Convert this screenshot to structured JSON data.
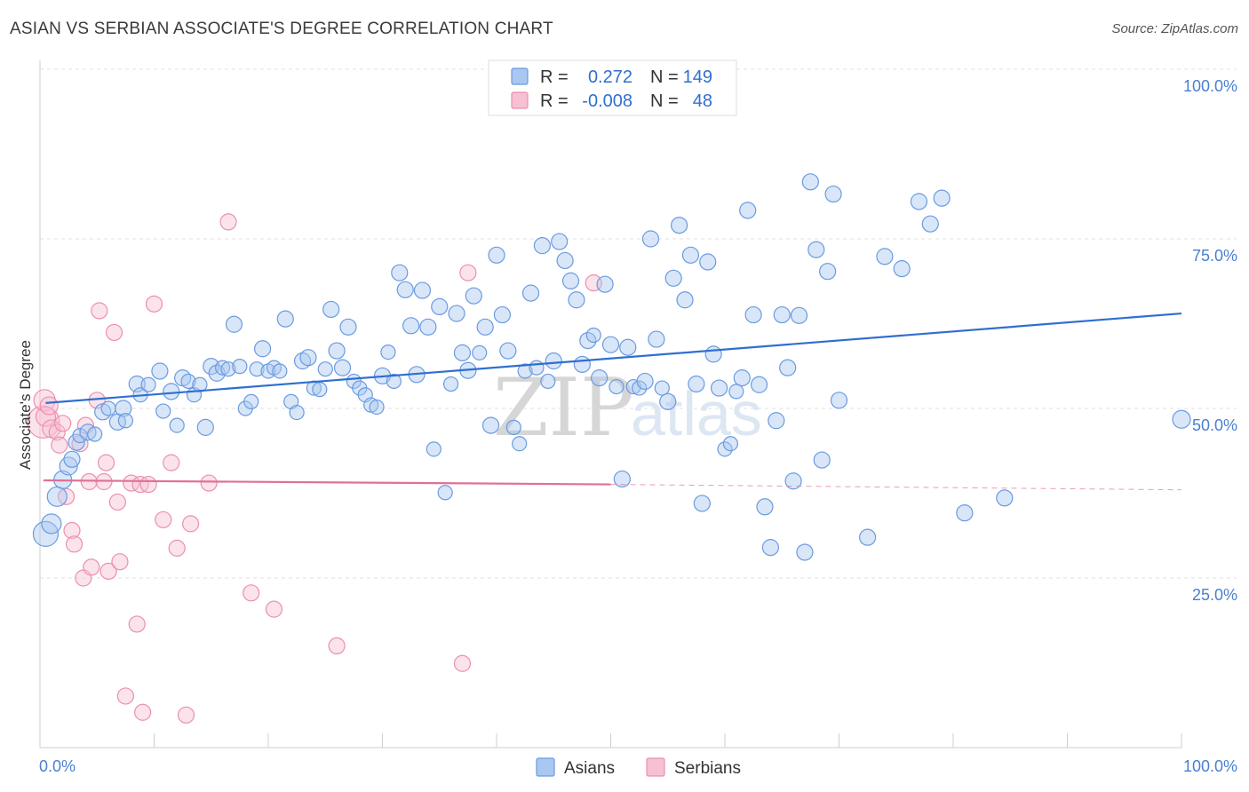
{
  "title": "ASIAN VS SERBIAN ASSOCIATE'S DEGREE CORRELATION CHART",
  "source": "Source: ZipAtlas.com",
  "watermark": {
    "zip": "ZIP",
    "atlas": "atlas"
  },
  "colors": {
    "asian": "#6a9be0",
    "asian_fill": "#a9c7f0",
    "serbian": "#ec8fae",
    "serbian_fill": "#f6c1d2",
    "asian_line": "#2f6fd0",
    "serbian_line": "#e07097",
    "tick": "#4a7fd0"
  },
  "legend": {
    "rows": [
      {
        "r_label": "R =",
        "r_value": "0.272",
        "n_label": "N =",
        "n_value": "149"
      },
      {
        "r_label": "R =",
        "r_value": "-0.008",
        "n_label": "N =",
        "n_value": "48"
      }
    ]
  },
  "bottom_legend": {
    "asian": "Asians",
    "serbian": "Serbians"
  },
  "chart_data": {
    "type": "scatter",
    "xlabel": "",
    "ylabel": "Associate's Degree",
    "xlim": [
      0,
      100
    ],
    "ylim": [
      0,
      100
    ],
    "x_ticks": [
      "0.0%",
      "100.0%"
    ],
    "y_ticks": [
      {
        "value": 25,
        "label": "25.0%"
      },
      {
        "value": 50,
        "label": "50.0%"
      },
      {
        "value": 75,
        "label": "75.0%"
      },
      {
        "value": 100,
        "label": "100.0%"
      }
    ],
    "grid": true,
    "legend_position": "top-center",
    "series": [
      {
        "name": "Asians",
        "trend": {
          "x0": 0.5,
          "y0": 50.8,
          "x1": 100,
          "y1": 64.0
        },
        "points": [
          [
            0.5,
            31.5,
            14
          ],
          [
            1,
            33,
            11
          ],
          [
            1.5,
            37,
            11
          ],
          [
            2,
            39.5,
            10
          ],
          [
            2.5,
            41.5,
            10
          ],
          [
            2.8,
            42.5,
            9
          ],
          [
            3.2,
            45,
            9
          ],
          [
            3.5,
            46,
            8
          ],
          [
            4.2,
            46.5,
            9
          ],
          [
            4.8,
            46.2,
            8
          ],
          [
            5.5,
            49.5,
            9
          ],
          [
            6,
            50,
            8
          ],
          [
            6.8,
            48,
            9
          ],
          [
            7.3,
            50,
            9
          ],
          [
            7.5,
            48.2,
            8
          ],
          [
            8.5,
            53.6,
            9
          ],
          [
            8.8,
            52,
            8
          ],
          [
            9.5,
            53.5,
            8
          ],
          [
            10.5,
            55.5,
            9
          ],
          [
            10.8,
            49.6,
            8
          ],
          [
            11.5,
            52.5,
            9
          ],
          [
            12,
            47.5,
            8
          ],
          [
            12.5,
            54.5,
            9
          ],
          [
            13,
            54,
            8
          ],
          [
            13.5,
            52,
            8
          ],
          [
            14,
            53.5,
            8
          ],
          [
            14.5,
            47.2,
            9
          ],
          [
            15,
            56.2,
            9
          ],
          [
            15.5,
            55.2,
            9
          ],
          [
            16,
            56,
            8
          ],
          [
            16.5,
            55.8,
            8
          ],
          [
            17,
            62.4,
            9
          ],
          [
            17.5,
            56.2,
            8
          ],
          [
            18,
            50,
            8
          ],
          [
            18.5,
            51,
            8
          ],
          [
            19,
            55.8,
            8
          ],
          [
            19.5,
            58.8,
            9
          ],
          [
            20,
            55.5,
            8
          ],
          [
            20.5,
            56,
            8
          ],
          [
            21,
            55.5,
            8
          ],
          [
            21.5,
            63.2,
            9
          ],
          [
            22,
            51,
            8
          ],
          [
            22.5,
            49.4,
            8
          ],
          [
            23,
            57,
            9
          ],
          [
            23.5,
            57.5,
            9
          ],
          [
            24,
            53,
            8
          ],
          [
            24.5,
            52.8,
            8
          ],
          [
            25,
            55.8,
            8
          ],
          [
            25.5,
            64.6,
            9
          ],
          [
            26,
            58.5,
            9
          ],
          [
            26.5,
            56,
            9
          ],
          [
            27,
            62,
            9
          ],
          [
            27.5,
            54,
            8
          ],
          [
            28,
            53,
            8
          ],
          [
            28.5,
            52,
            8
          ],
          [
            29,
            50.5,
            8
          ],
          [
            29.5,
            50.2,
            8
          ],
          [
            30,
            54.8,
            9
          ],
          [
            30.5,
            58.3,
            8
          ],
          [
            31,
            54,
            8
          ],
          [
            31.5,
            70,
            9
          ],
          [
            32,
            67.5,
            9
          ],
          [
            32.5,
            62.2,
            9
          ],
          [
            33,
            55,
            9
          ],
          [
            33.5,
            67.4,
            9
          ],
          [
            34,
            62,
            9
          ],
          [
            34.5,
            44,
            8
          ],
          [
            35,
            65,
            9
          ],
          [
            35.5,
            37.6,
            8
          ],
          [
            36,
            53.6,
            8
          ],
          [
            36.5,
            64,
            9
          ],
          [
            37,
            58.2,
            9
          ],
          [
            37.5,
            55.6,
            9
          ],
          [
            38,
            66.6,
            9
          ],
          [
            38.5,
            58.2,
            8
          ],
          [
            39,
            62,
            9
          ],
          [
            39.5,
            47.5,
            9
          ],
          [
            40,
            72.6,
            9
          ],
          [
            40.5,
            63.8,
            9
          ],
          [
            41,
            58.5,
            9
          ],
          [
            41.5,
            47.2,
            8
          ],
          [
            42,
            44.8,
            8
          ],
          [
            42.5,
            55.5,
            8
          ],
          [
            43,
            67,
            9
          ],
          [
            43.5,
            56,
            8
          ],
          [
            44,
            74,
            9
          ],
          [
            44.5,
            54,
            8
          ],
          [
            45,
            57,
            9
          ],
          [
            45.5,
            74.6,
            9
          ],
          [
            46,
            71.8,
            9
          ],
          [
            46.5,
            68.8,
            9
          ],
          [
            47,
            66,
            9
          ],
          [
            47.5,
            56.5,
            9
          ],
          [
            48,
            60,
            9
          ],
          [
            48.5,
            60.8,
            8
          ],
          [
            49,
            54.5,
            9
          ],
          [
            49.5,
            68.3,
            9
          ],
          [
            50,
            59.4,
            9
          ],
          [
            50.5,
            53.2,
            8
          ],
          [
            51,
            39.6,
            9
          ],
          [
            51.5,
            59,
            9
          ],
          [
            52,
            53.2,
            8
          ],
          [
            52.5,
            53,
            8
          ],
          [
            53,
            54,
            9
          ],
          [
            53.5,
            75,
            9
          ],
          [
            54,
            60.2,
            9
          ],
          [
            54.5,
            53,
            8
          ],
          [
            55,
            51,
            9
          ],
          [
            55.5,
            69.2,
            9
          ],
          [
            56,
            77,
            9
          ],
          [
            56.5,
            66,
            9
          ],
          [
            57,
            72.6,
            9
          ],
          [
            57.5,
            53.6,
            9
          ],
          [
            58,
            36,
            9
          ],
          [
            58.5,
            71.6,
            9
          ],
          [
            59,
            58,
            9
          ],
          [
            59.5,
            53,
            9
          ],
          [
            60,
            44,
            8
          ],
          [
            60.5,
            44.8,
            8
          ],
          [
            61,
            52.5,
            8
          ],
          [
            61.5,
            54.5,
            9
          ],
          [
            62,
            79.2,
            9
          ],
          [
            62.5,
            63.8,
            9
          ],
          [
            63,
            53.5,
            9
          ],
          [
            63.5,
            35.5,
            9
          ],
          [
            64,
            29.5,
            9
          ],
          [
            64.5,
            48.2,
            9
          ],
          [
            65,
            63.8,
            9
          ],
          [
            65.5,
            56,
            9
          ],
          [
            66,
            39.3,
            9
          ],
          [
            66.5,
            63.7,
            9
          ],
          [
            67,
            28.8,
            9
          ],
          [
            67.5,
            83.4,
            9
          ],
          [
            68,
            73.4,
            9
          ],
          [
            68.5,
            42.4,
            9
          ],
          [
            69,
            70.2,
            9
          ],
          [
            69.5,
            81.6,
            9
          ],
          [
            70,
            51.2,
            9
          ],
          [
            72.5,
            31,
            9
          ],
          [
            74,
            72.4,
            9
          ],
          [
            75.5,
            70.6,
            9
          ],
          [
            77,
            80.5,
            9
          ],
          [
            78,
            77.2,
            9
          ],
          [
            79,
            81,
            9
          ],
          [
            81,
            34.6,
            9
          ],
          [
            84.5,
            36.8,
            9
          ],
          [
            100,
            48.4,
            10
          ]
        ]
      },
      {
        "name": "Serbians",
        "trend": {
          "x0": 0.3,
          "y0": 39.4,
          "x1": 50,
          "y1": 38.8
        },
        "trend_dashed": {
          "x0": 50,
          "y0": 38.8,
          "x1": 100,
          "y1": 38.0
        },
        "points": [
          [
            0.3,
            48,
            18
          ],
          [
            0.4,
            51.2,
            12
          ],
          [
            0.5,
            48.8,
            11
          ],
          [
            0.8,
            50.4,
            10
          ],
          [
            1,
            47,
            10
          ],
          [
            1.5,
            46.5,
            9
          ],
          [
            1.7,
            44.6,
            9
          ],
          [
            2,
            47.8,
            9
          ],
          [
            2.3,
            37,
            9
          ],
          [
            2.8,
            32,
            9
          ],
          [
            3,
            30,
            9
          ],
          [
            3.5,
            44.8,
            9
          ],
          [
            3.8,
            25,
            9
          ],
          [
            4,
            47.5,
            9
          ],
          [
            4.3,
            39.2,
            9
          ],
          [
            4.5,
            26.6,
            9
          ],
          [
            5,
            51.2,
            9
          ],
          [
            5.2,
            64.4,
            9
          ],
          [
            5.6,
            39.2,
            9
          ],
          [
            5.8,
            42,
            9
          ],
          [
            6,
            26,
            9
          ],
          [
            6.5,
            61.2,
            9
          ],
          [
            6.8,
            36.2,
            9
          ],
          [
            7,
            27.4,
            9
          ],
          [
            7.5,
            7.6,
            9
          ],
          [
            8,
            39,
            9
          ],
          [
            8.5,
            18.2,
            9
          ],
          [
            8.8,
            38.8,
            9
          ],
          [
            9,
            5.2,
            9
          ],
          [
            9.5,
            38.8,
            9
          ],
          [
            10,
            65.4,
            9
          ],
          [
            10.8,
            33.6,
            9
          ],
          [
            11.5,
            42,
            9
          ],
          [
            12,
            29.4,
            9
          ],
          [
            12.8,
            4.8,
            9
          ],
          [
            13.2,
            33,
            9
          ],
          [
            14.8,
            39,
            9
          ],
          [
            16.5,
            77.5,
            9
          ],
          [
            18.5,
            22.8,
            9
          ],
          [
            20.5,
            20.4,
            9
          ],
          [
            26,
            15,
            9
          ],
          [
            37,
            12.4,
            9
          ],
          [
            37.5,
            70,
            9
          ],
          [
            48.5,
            68.5,
            9
          ]
        ]
      }
    ]
  }
}
